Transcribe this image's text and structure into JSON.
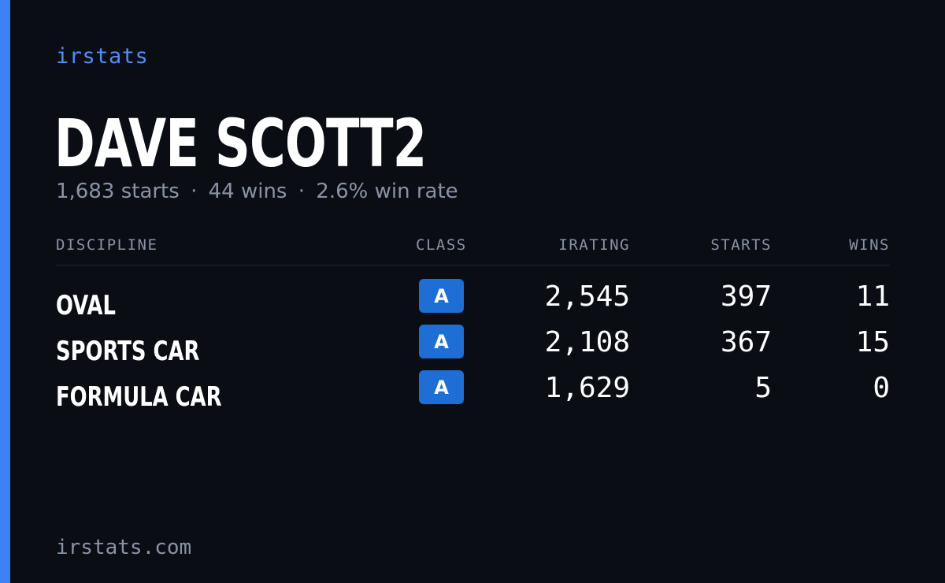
{
  "brand": "irstats",
  "driver": {
    "name": "DAVE SCOTT2",
    "starts": "1,683 starts",
    "wins": "44 wins",
    "win_rate": "2.6% win rate",
    "separator": "·"
  },
  "table": {
    "headers": {
      "discipline": "DISCIPLINE",
      "class": "CLASS",
      "irating": "IRATING",
      "starts": "STARTS",
      "wins": "WINS"
    },
    "rows": [
      {
        "discipline": "OVAL",
        "class": "A",
        "irating": "2,545",
        "starts": "397",
        "wins": "11"
      },
      {
        "discipline": "SPORTS CAR",
        "class": "A",
        "irating": "2,108",
        "starts": "367",
        "wins": "15"
      },
      {
        "discipline": "FORMULA CAR",
        "class": "A",
        "irating": "1,629",
        "starts": "5",
        "wins": "0"
      }
    ]
  },
  "footer": "irstats.com",
  "colors": {
    "background": "#0a0d14",
    "accent": "#3b82f6",
    "badge": "#1d6fd6",
    "muted_text": "#8a93a6"
  }
}
